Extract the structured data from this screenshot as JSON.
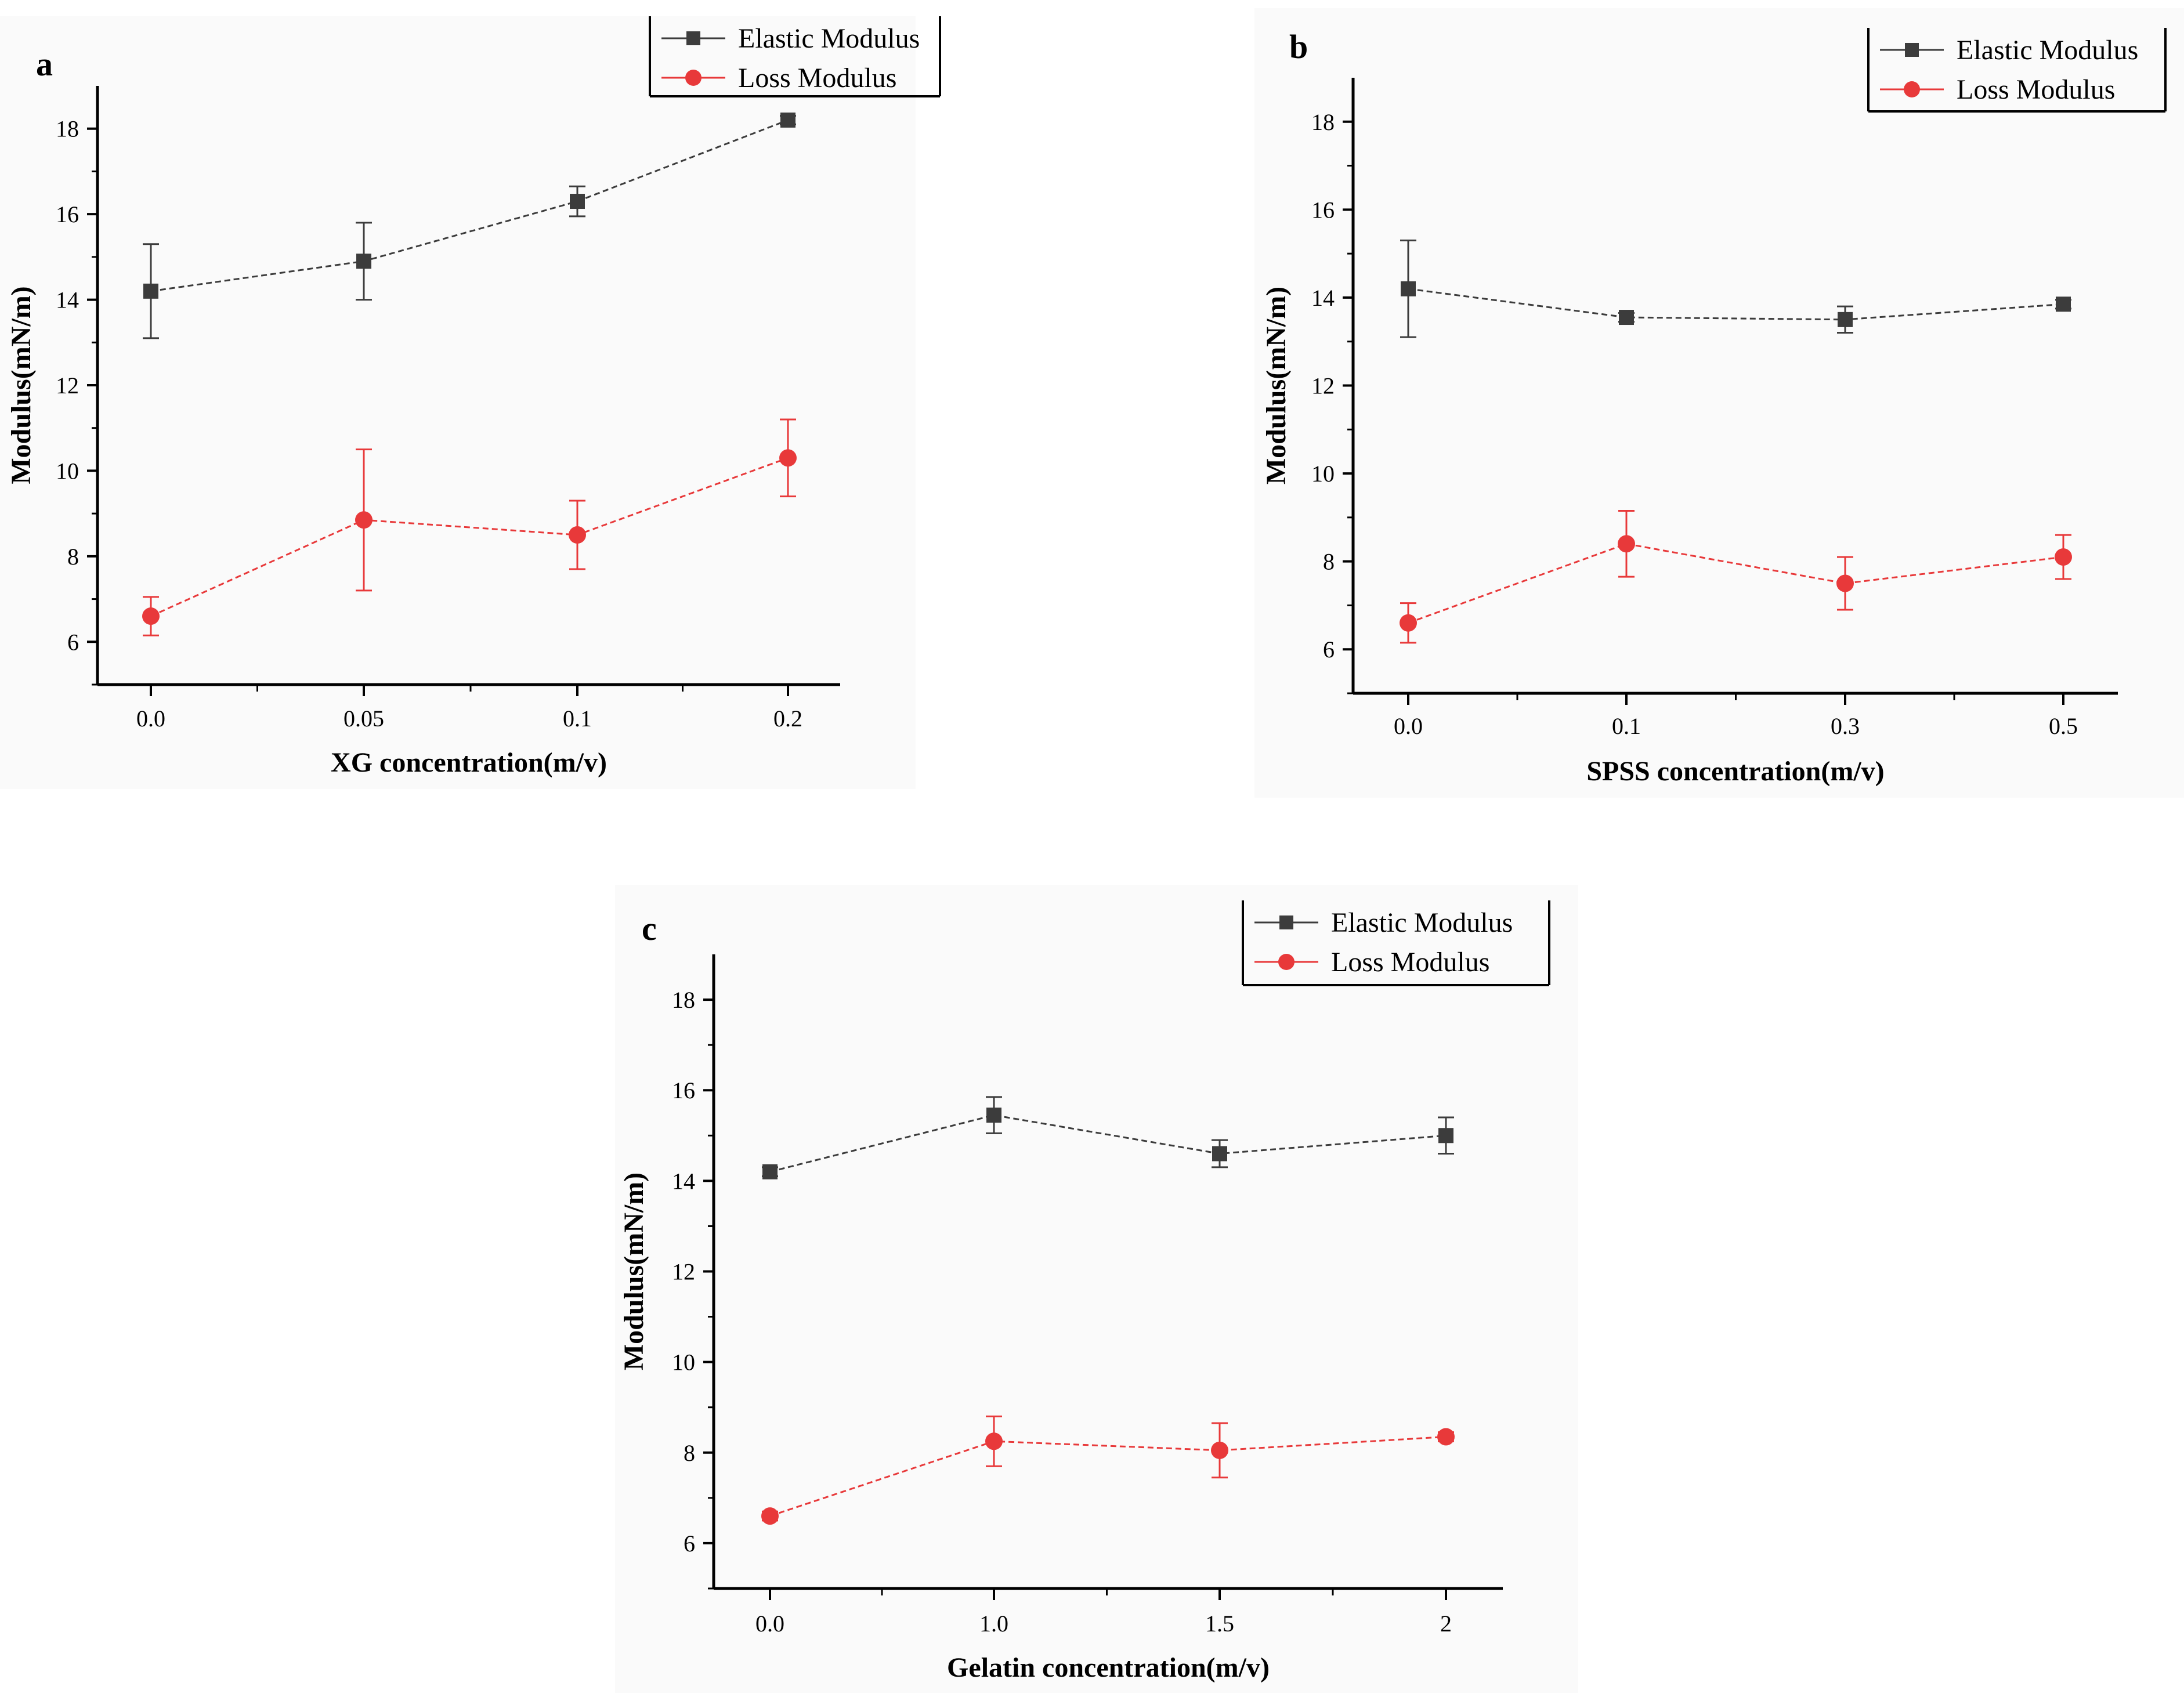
{
  "chart_data": [
    {
      "type": "line",
      "panel_label": "a",
      "xlabel": "XG concentration(m/v)",
      "ylabel": "Modulus(mN/m)",
      "categories": [
        "0.0",
        "0.05",
        "0.1",
        "0.2"
      ],
      "ylim": [
        5,
        19
      ],
      "yticks": [
        "6",
        "8",
        "10",
        "12",
        "14",
        "16",
        "18"
      ],
      "legend_position": "top-right",
      "series": [
        {
          "name": "Elastic Modulus",
          "marker": "square",
          "color": "#3c3c3c",
          "values": [
            14.2,
            14.9,
            16.3,
            18.2
          ],
          "errors": [
            1.1,
            0.9,
            0.35,
            0.1
          ]
        },
        {
          "name": "Loss Modulus",
          "marker": "circle",
          "color": "#e8393a",
          "values": [
            6.6,
            8.85,
            8.5,
            10.3
          ],
          "errors": [
            0.45,
            1.65,
            0.8,
            0.9
          ]
        }
      ]
    },
    {
      "type": "line",
      "panel_label": "b",
      "xlabel": "SPSS concentration(m/v)",
      "ylabel": "Modulus(mN/m)",
      "categories": [
        "0.0",
        "0.1",
        "0.3",
        "0.5"
      ],
      "ylim": [
        5,
        19
      ],
      "yticks": [
        "6",
        "8",
        "10",
        "12",
        "14",
        "16",
        "18"
      ],
      "legend_position": "top-right",
      "series": [
        {
          "name": "Elastic Modulus",
          "marker": "square",
          "color": "#3c3c3c",
          "values": [
            14.2,
            13.55,
            13.5,
            13.85
          ],
          "errors": [
            1.1,
            0.1,
            0.3,
            0.1
          ]
        },
        {
          "name": "Loss Modulus",
          "marker": "circle",
          "color": "#e8393a",
          "values": [
            6.6,
            8.4,
            7.5,
            8.1
          ],
          "errors": [
            0.45,
            0.75,
            0.6,
            0.5
          ]
        }
      ]
    },
    {
      "type": "line",
      "panel_label": "c",
      "xlabel": "Gelatin concentration(m/v)",
      "ylabel": "Modulus(mN/m)",
      "categories": [
        "0.0",
        "1.0",
        "1.5",
        "2"
      ],
      "ylim": [
        5,
        19
      ],
      "yticks": [
        "6",
        "8",
        "10",
        "12",
        "14",
        "16",
        "18"
      ],
      "legend_position": "top-right",
      "series": [
        {
          "name": "Elastic Modulus",
          "marker": "square",
          "color": "#3c3c3c",
          "values": [
            14.2,
            15.45,
            14.6,
            15.0
          ],
          "errors": [
            0.1,
            0.4,
            0.3,
            0.4
          ]
        },
        {
          "name": "Loss Modulus",
          "marker": "circle",
          "color": "#e8393a",
          "values": [
            6.6,
            8.25,
            8.05,
            8.35
          ],
          "errors": [
            0.1,
            0.55,
            0.6,
            0.1
          ]
        }
      ]
    }
  ]
}
